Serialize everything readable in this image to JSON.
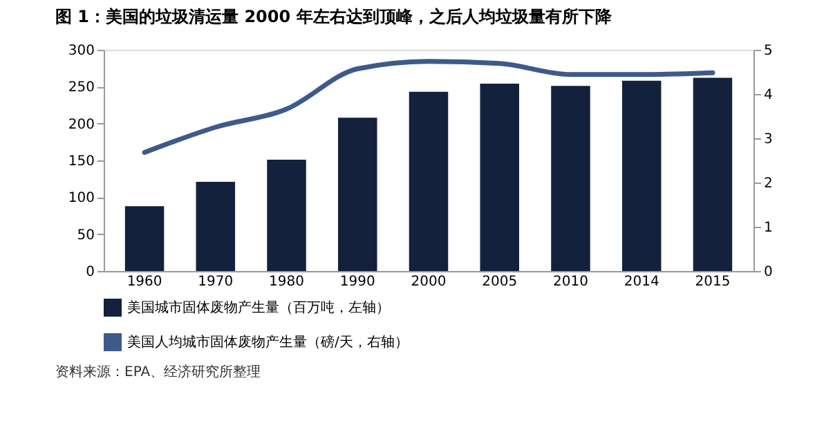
{
  "chart_data": {
    "type": "bar",
    "title": "图 1：美国的垃圾清运量 2000 年左右达到顶峰，之后人均垃圾量有所下降",
    "categories": [
      "1960",
      "1970",
      "1980",
      "1990",
      "2000",
      "2005",
      "2010",
      "2014",
      "2015"
    ],
    "series": [
      {
        "name": "美国城市固体废物产生量（百万吨，左轴）",
        "color": "#14213d",
        "values": [
          88,
          121,
          151,
          208,
          243,
          254,
          251,
          258,
          262
        ]
      },
      {
        "name": "美国人均城市固体废物产生量（磅/天，右轴）",
        "color": "#3d5a8a",
        "type": "line",
        "axis": "y2",
        "values": [
          2.68,
          3.25,
          3.66,
          4.57,
          4.74,
          4.69,
          4.44,
          4.44,
          4.48
        ]
      }
    ],
    "ylim": [
      0,
      300
    ],
    "yticks": [
      0,
      50,
      100,
      150,
      200,
      250,
      300
    ],
    "y2lim": [
      0,
      5
    ],
    "y2ticks": [
      0,
      1,
      2,
      3,
      4,
      5
    ],
    "grid": false,
    "legend": "bottom",
    "annotations": [
      "资料来源：EPA、经济研究所整理"
    ]
  }
}
